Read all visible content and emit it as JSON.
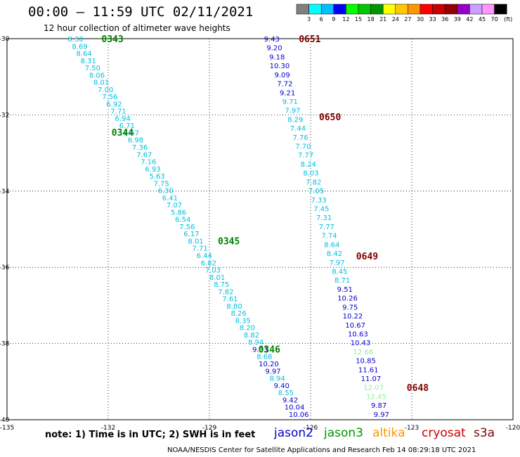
{
  "header": {
    "title": "00:00 – 11:59 UTC 02/11/2021",
    "subtitle": "12 hour collection of altimeter wave heights"
  },
  "colorbar": {
    "labels": [
      "3",
      "6",
      "9",
      "12",
      "15",
      "18",
      "21",
      "24",
      "27",
      "30",
      "33",
      "36",
      "39",
      "42",
      "45",
      "70",
      "(ft)"
    ],
    "colors": [
      "#808080",
      "#00ffff",
      "#00bfff",
      "#0000ff",
      "#00ff00",
      "#00c800",
      "#009600",
      "#ffff00",
      "#ffc800",
      "#ff9600",
      "#ff0000",
      "#c80000",
      "#960000",
      "#9600c8",
      "#c8a0ff",
      "#ff96ff",
      "#000000"
    ]
  },
  "footer": {
    "note": "note: 1) Time is in UTC; 2) SWH is in feet",
    "credit": "NOAA/NESDIS Center for Satellite Applications and Research   Feb 14 08:29:18 UTC 2021"
  },
  "legend": {
    "satellites": [
      {
        "name": "jason2",
        "color": "#0000cc"
      },
      {
        "name": "jason3",
        "color": "#009600"
      },
      {
        "name": "altika",
        "color": "#ff9600"
      },
      {
        "name": "cryosat",
        "color": "#cc0000"
      },
      {
        "name": "s3a",
        "color": "#800000"
      }
    ]
  },
  "chart_data": {
    "type": "scatter",
    "x_ticks": [
      -135,
      -132,
      -129,
      -126,
      -123,
      -120
    ],
    "y_ticks": [
      -30,
      -32,
      -34,
      -36,
      -38,
      -40
    ],
    "xlim": [
      -135,
      -120
    ],
    "ylim": [
      -40,
      -30
    ],
    "grid": true,
    "track_colors": {
      "jason3": "#00bfe0",
      "sat_b": "#0000cc",
      "green": "#90f090"
    },
    "time_colors": {
      "jason3": "#008000",
      "sat_b": "#800000"
    },
    "tracks": [
      {
        "name": "jason3",
        "color_key": "jason3",
        "start": [
          -132.97,
          -30.0
        ],
        "end": [
          -126.35,
          -39.85
        ],
        "values": [
          "8.30",
          "8.69",
          "8.64",
          "8.31",
          "7.50",
          "8.06",
          "8.01",
          "7.00",
          "7.56",
          "6.92",
          "7.71",
          "6.94",
          "6.71",
          "6.67",
          "6.98",
          "7.36",
          "7.67",
          "7.16",
          "6.93",
          "5.63",
          "7.75",
          "6.30",
          "6.41",
          "7.07",
          "5.86",
          "6.54",
          "7.56",
          "6.17",
          "8.01",
          "7.71",
          "6.44",
          "6.82",
          "7.03",
          "8.01",
          "8.75",
          "7.82",
          "7.61",
          "8.80",
          "8.26",
          "8.35",
          "8.20",
          "8.82",
          "8.94",
          "9.33",
          "8.68",
          "10.20",
          "9.97",
          "8.94",
          "9.40",
          "8.55",
          "9.42",
          "10.04",
          "10.06"
        ],
        "value_colors": {
          "43": "sat_b",
          "45": "sat_b",
          "46": "sat_b",
          "48": "sat_b",
          "50": "sat_b",
          "51": "sat_b",
          "52": "sat_b"
        },
        "times": [
          {
            "label": "0343",
            "x": -132.2,
            "y": -30.0
          },
          {
            "label": "0344",
            "x": -131.9,
            "y": -32.45
          },
          {
            "label": "0345",
            "x": -128.75,
            "y": -35.3
          },
          {
            "label": "0346",
            "x": -127.55,
            "y": -38.15
          }
        ]
      },
      {
        "name": "sat_b",
        "color_key": "sat_b",
        "start": [
          -127.15,
          -30.0
        ],
        "end": [
          -123.9,
          -39.85
        ],
        "values": [
          "9.43",
          "9.20",
          "9.18",
          "10.30",
          "9.09",
          "7.72",
          "9.21",
          "9.71",
          "7.97",
          "8.29",
          "7.44",
          "7.76",
          "7.70",
          "7.77",
          "8.24",
          "8.03",
          "7.82",
          "7.05",
          "7.33",
          "7.45",
          "7.31",
          "7.77",
          "7.74",
          "8.64",
          "8.42",
          "7.97",
          "8.45",
          "8.71",
          "9.51",
          "10.26",
          "9.75",
          "10.22",
          "10.67",
          "10.63",
          "10.43",
          "12.66",
          "10.85",
          "11.61",
          "11.07",
          "12.07",
          "12.45",
          "9.87",
          "9.97"
        ],
        "value_colors": {
          "7": "jason3",
          "8": "jason3",
          "9": "jason3",
          "10": "jason3",
          "11": "jason3",
          "12": "jason3",
          "13": "jason3",
          "14": "jason3",
          "15": "jason3",
          "16": "jason3",
          "17": "jason3",
          "18": "jason3",
          "19": "jason3",
          "20": "jason3",
          "21": "jason3",
          "22": "jason3",
          "23": "jason3",
          "24": "jason3",
          "25": "jason3",
          "26": "jason3",
          "27": "jason3",
          "35": "green",
          "39": "green",
          "40": "green"
        },
        "times": [
          {
            "label": "0651",
            "x": -126.35,
            "y": -30.0
          },
          {
            "label": "0650",
            "x": -125.75,
            "y": -32.05
          },
          {
            "label": "0649",
            "x": -124.65,
            "y": -35.7
          },
          {
            "label": "0648",
            "x": -123.15,
            "y": -39.15
          }
        ]
      }
    ]
  }
}
